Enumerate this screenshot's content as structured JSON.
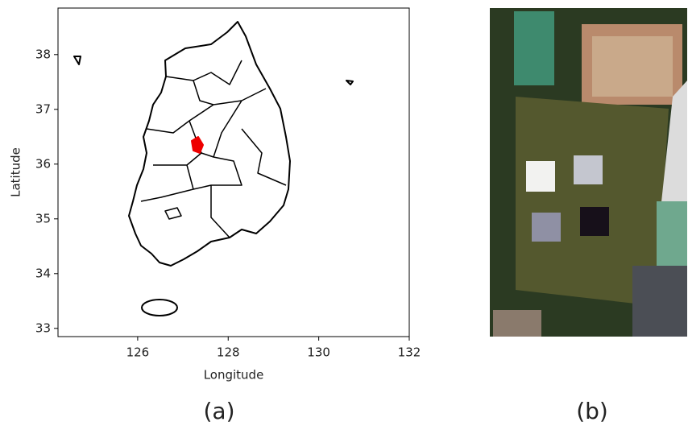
{
  "map": {
    "xlabel": "Longitude",
    "ylabel": "Latitude",
    "xlim": [
      124.24,
      132.0
    ],
    "ylim": [
      32.85,
      38.85
    ],
    "xticks": [
      126,
      128,
      130,
      132
    ],
    "yticks": [
      33,
      34,
      35,
      36,
      37,
      38
    ]
  },
  "captions": [
    "(a)",
    "(b)"
  ]
}
